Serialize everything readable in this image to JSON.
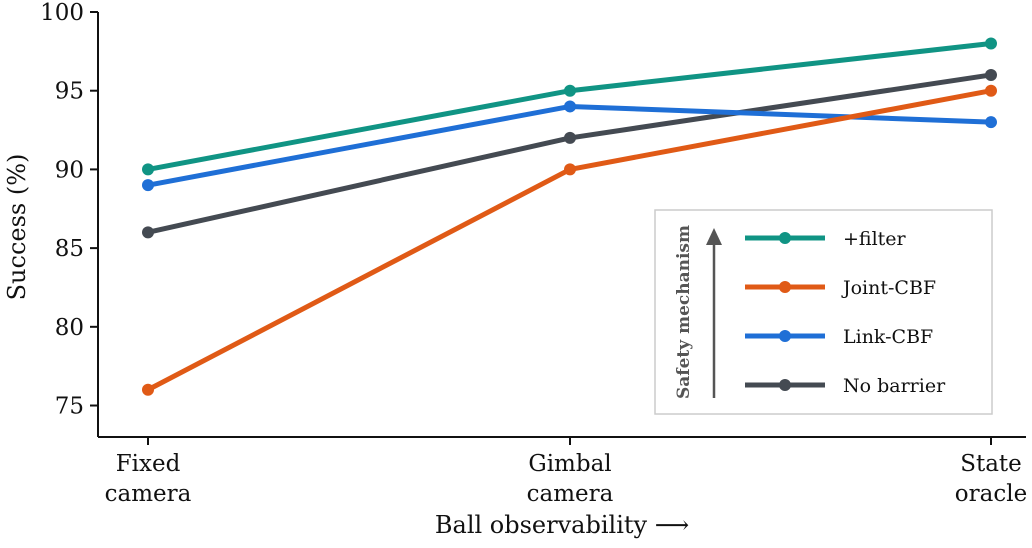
{
  "chart_data": {
    "type": "line",
    "categories": [
      [
        "Fixed",
        "camera"
      ],
      [
        "Gimbal",
        "camera"
      ],
      [
        "State",
        "oracle"
      ]
    ],
    "xlabel": "Ball observability ⟶",
    "ylabel": "Success (%)",
    "ylim": [
      73,
      100
    ],
    "yticks": [
      75,
      80,
      85,
      90,
      95,
      100
    ],
    "grid": false,
    "legend": {
      "placement": "bottom-right",
      "title": "Safety mechanism",
      "order": [
        "+filter",
        "Joint-CBF",
        "Link-CBF",
        "No barrier"
      ]
    },
    "series": [
      {
        "name": "No barrier",
        "color": "#444a52",
        "values": [
          86,
          92,
          96
        ]
      },
      {
        "name": "Link-CBF",
        "color": "#1f6fd6",
        "values": [
          89,
          94,
          93
        ]
      },
      {
        "name": "Joint-CBF",
        "color": "#e05a16",
        "values": [
          76,
          90,
          95
        ]
      },
      {
        "name": "+filter",
        "color": "#109484",
        "values": [
          90,
          95,
          98
        ]
      }
    ]
  }
}
